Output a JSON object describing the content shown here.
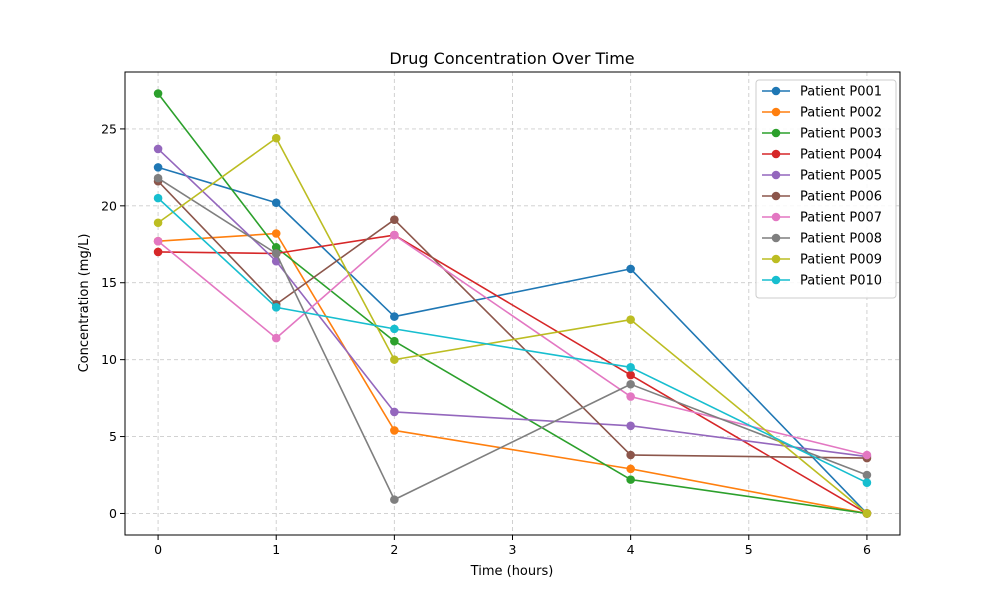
{
  "chart_data": {
    "type": "line",
    "title": "Drug Concentration Over Time",
    "xlabel": "Time (hours)",
    "ylabel": "Concentration (mg/L)",
    "x": [
      0,
      1,
      2,
      4,
      6
    ],
    "xlim": [
      -0.28,
      6.28
    ],
    "ylim": [
      -1.4,
      28.7
    ],
    "xticks": [
      0,
      1,
      2,
      3,
      4,
      5,
      6
    ],
    "yticks": [
      0,
      5,
      10,
      15,
      20,
      25
    ],
    "grid": true,
    "legend_position": "top-right",
    "series": [
      {
        "name": "Patient P001",
        "color": "#1f77b4",
        "values": [
          22.5,
          20.2,
          12.8,
          15.9,
          0.0
        ]
      },
      {
        "name": "Patient P002",
        "color": "#ff7f0e",
        "values": [
          17.7,
          18.2,
          5.4,
          2.9,
          0.0
        ]
      },
      {
        "name": "Patient P003",
        "color": "#2ca02c",
        "values": [
          27.3,
          17.3,
          11.2,
          2.2,
          0.0
        ]
      },
      {
        "name": "Patient P004",
        "color": "#d62728",
        "values": [
          17.0,
          16.9,
          18.1,
          9.0,
          0.0
        ]
      },
      {
        "name": "Patient P005",
        "color": "#9467bd",
        "values": [
          23.7,
          16.4,
          6.6,
          5.7,
          3.7
        ]
      },
      {
        "name": "Patient P006",
        "color": "#8c564b",
        "values": [
          21.6,
          13.6,
          19.1,
          3.8,
          3.6
        ]
      },
      {
        "name": "Patient P007",
        "color": "#e377c2",
        "values": [
          17.7,
          11.4,
          18.1,
          7.6,
          3.8
        ]
      },
      {
        "name": "Patient P008",
        "color": "#7f7f7f",
        "values": [
          21.8,
          16.9,
          0.9,
          8.4,
          2.5
        ]
      },
      {
        "name": "Patient P009",
        "color": "#bcbd22",
        "values": [
          18.9,
          24.4,
          10.0,
          12.6,
          0.0
        ]
      },
      {
        "name": "Patient P010",
        "color": "#17becf",
        "values": [
          20.5,
          13.4,
          12.0,
          9.5,
          2.0
        ]
      }
    ]
  }
}
